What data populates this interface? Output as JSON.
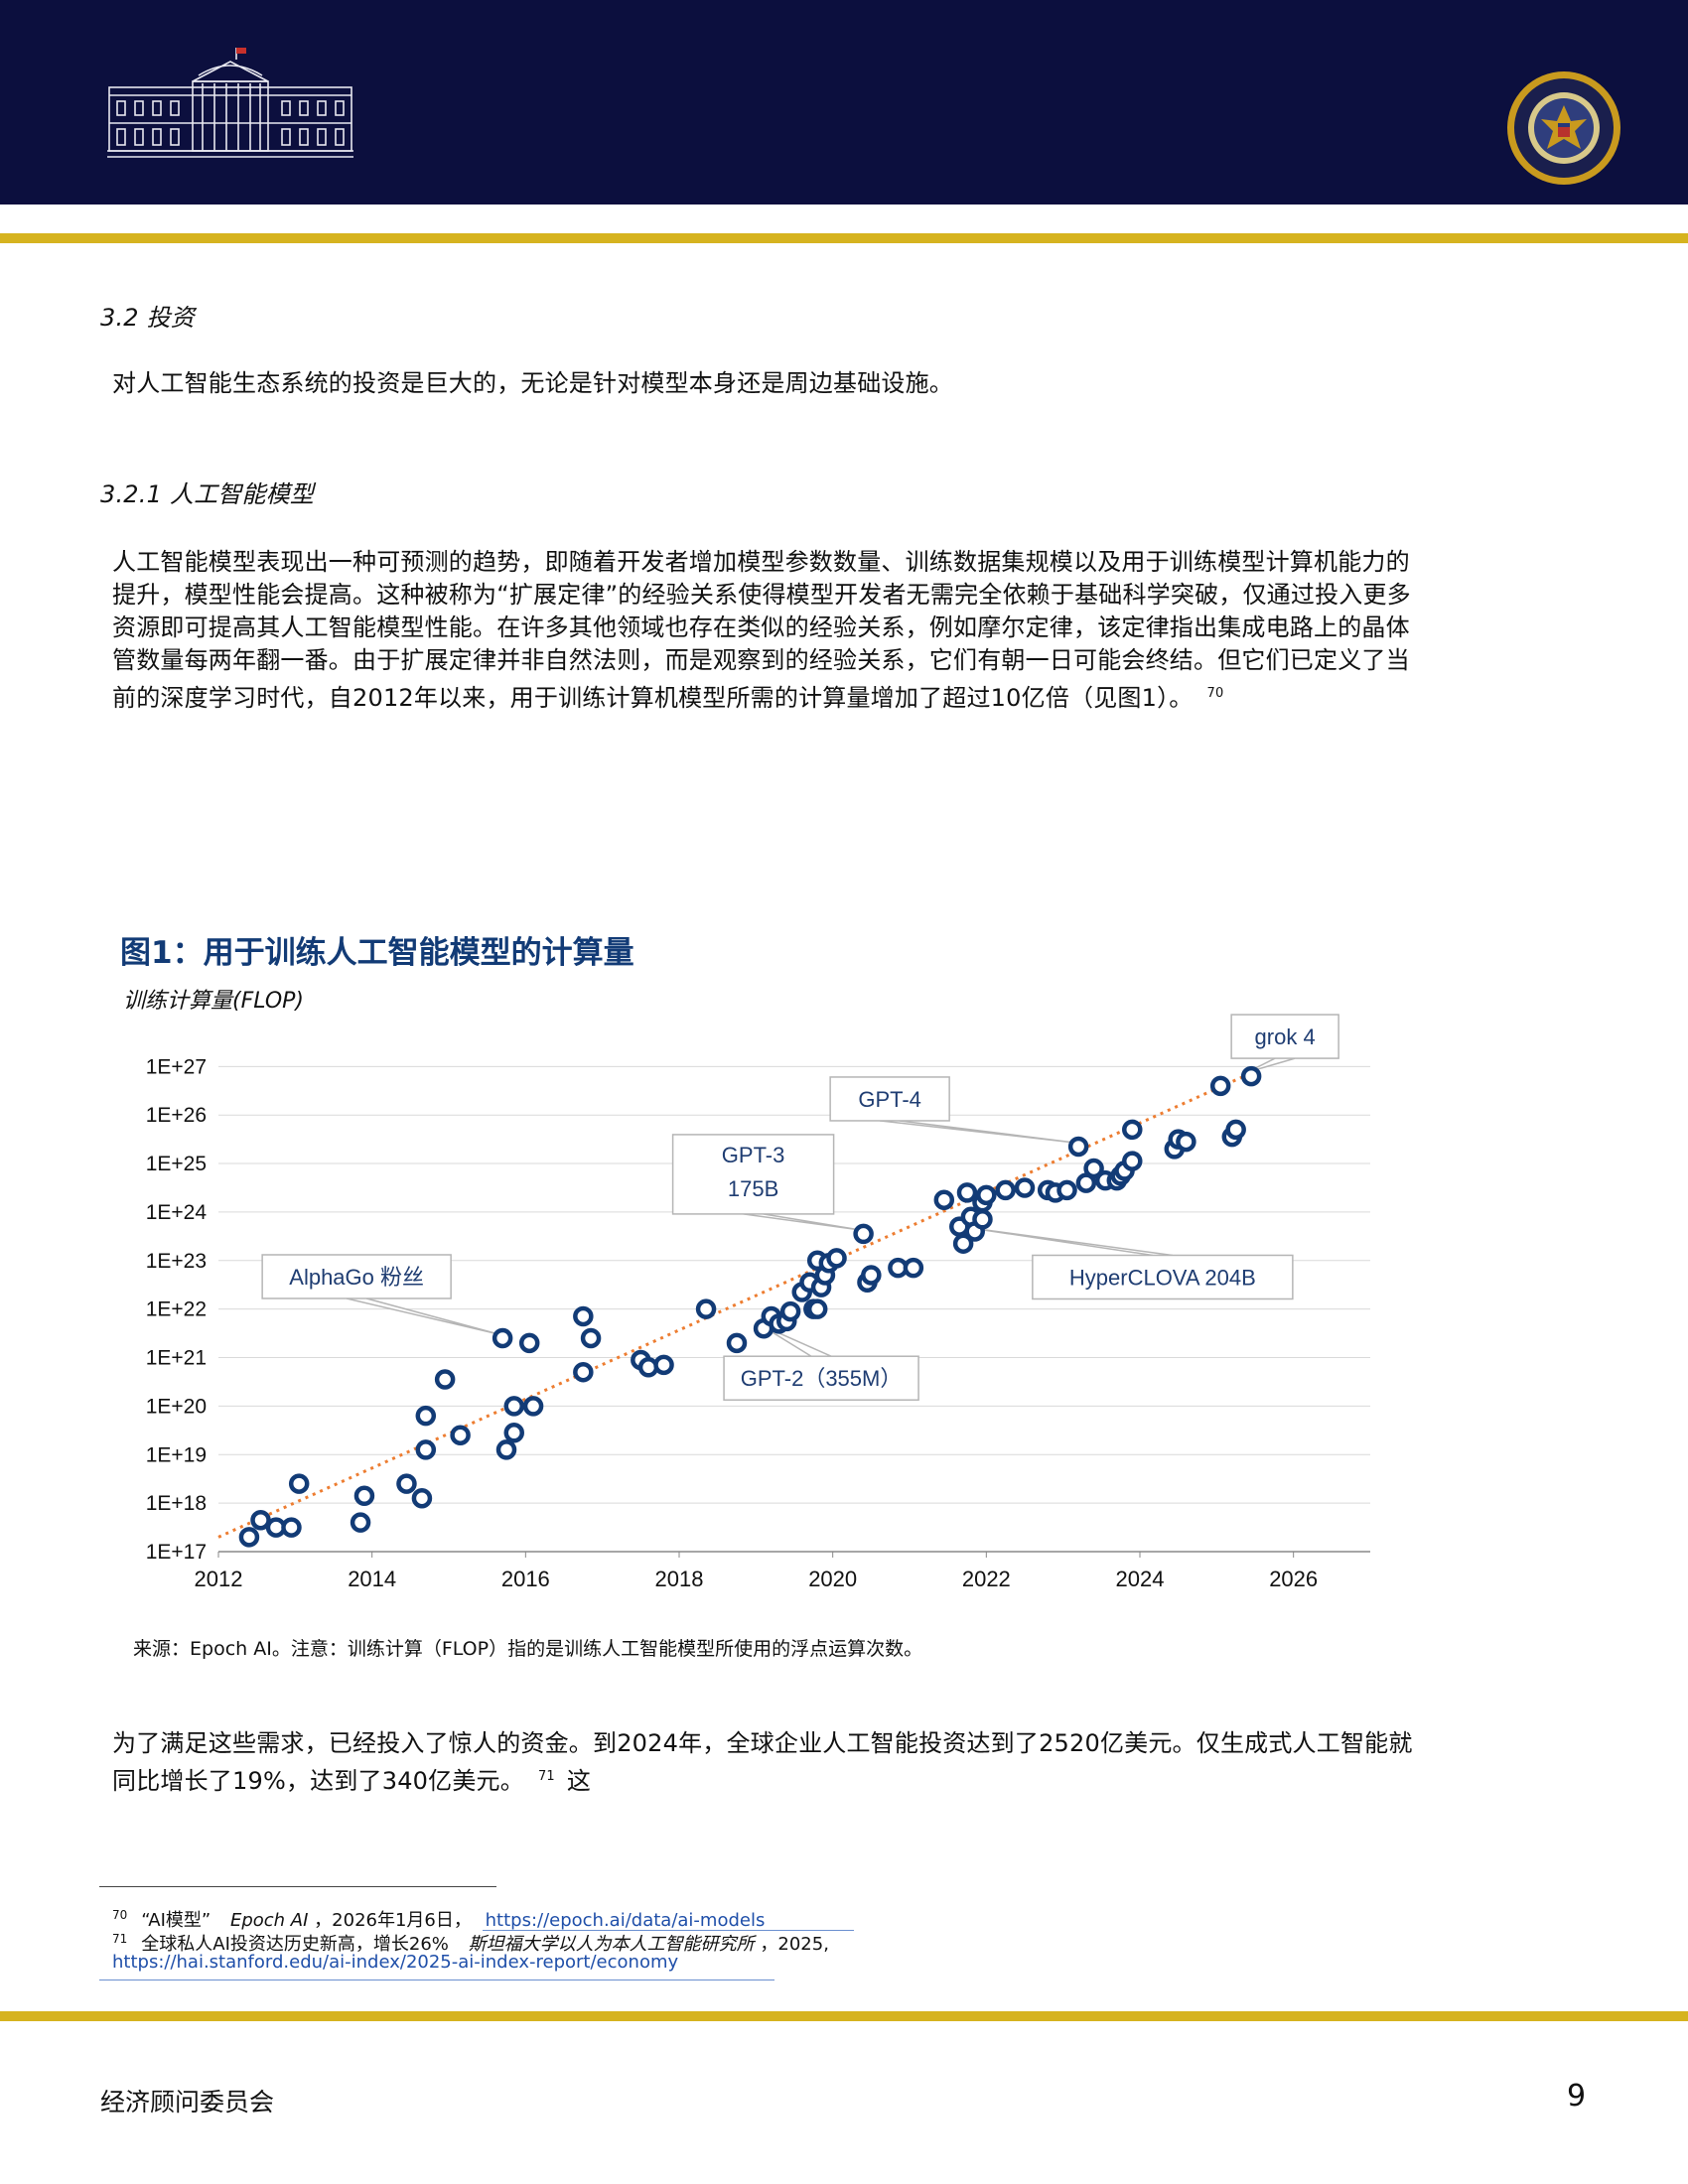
{
  "header": {
    "logo_left": "white-house-icon",
    "logo_right": "seal-icon",
    "seal_text": "EXECUTIVE OFFICE OF THE PRESIDENT OF THE UNITED STATES",
    "background": "#0c0f3e",
    "accent": "#d6b31f"
  },
  "section": {
    "heading_32": "3.2 投资",
    "intro": "对人工智能生态系统的投资是巨大的，无论是针对模型本身还是周边基础设施。",
    "heading_321": "3.2.1 人工智能模型",
    "para_lines": [
      "人工智能模型表现出一种可预测的趋势，即随着开发者增加模型参数数量、训练数据集规模以及用于训练模型计算机能力的",
      "提升，模型性能会提高。这种被称为“扩展定律”的经验关系使得模型开发者无需完全依赖于基础科学突破，仅通过投入更多",
      "资源即可提高其人工智能模型性能。在许多其他领域也存在类似的经验关系，例如摩尔定律，该定律指出集成电路上的晶体",
      "管数量每两年翻一番。由于扩展定律并非自然法则，而是观察到的经验关系，它们有朝一日可能会终结。但它们已定义了当",
      "前的深度学习时代，自2012年以来，用于训练计算机模型所需的计算量增加了超过10亿倍（见图1）。"
    ],
    "para_ref": "70",
    "after_lines": [
      "为了满足这些需求，已经投入了惊人的资金。到2024年，全球企业人工智能投资达到了2520亿美元。仅生成式人工智能就",
      "同比增长了19%，达到了340亿美元。"
    ],
    "after_ref": "71",
    "after_tail": "这"
  },
  "figure": {
    "title": "图1：用于训练人工智能模型的计算量",
    "source": "来源：Epoch AI。注意：训练计算（FLOP）指的是训练人工智能模型所使用的浮点运算次数。"
  },
  "chart_data": {
    "type": "scatter",
    "title": "图1：用于训练人工智能模型的计算量",
    "ylabel": "训练计算量(FLOP)",
    "xlabel": "",
    "y_scale": "log10",
    "xlim": [
      2012,
      2027
    ],
    "ylim": [
      17,
      27.6
    ],
    "x_ticks": [
      "2012",
      "2014",
      "2016",
      "2018",
      "2020",
      "2022",
      "2024",
      "2026"
    ],
    "y_ticks": [
      "1E+17",
      "1E+18",
      "1E+19",
      "1E+20",
      "1E+21",
      "1E+22",
      "1E+23",
      "1E+24",
      "1E+25",
      "1E+26",
      "1E+27"
    ],
    "grid": true,
    "marker_color": "#123b76",
    "trend_color": "#ed7d31",
    "trend": [
      [
        2012,
        17.3
      ],
      [
        2025.5,
        26.9
      ]
    ],
    "points": [
      [
        2012.4,
        17.3
      ],
      [
        2012.55,
        17.65
      ],
      [
        2012.75,
        17.5
      ],
      [
        2012.95,
        17.5
      ],
      [
        2013.05,
        18.4
      ],
      [
        2013.85,
        17.6
      ],
      [
        2013.9,
        18.15
      ],
      [
        2014.45,
        18.4
      ],
      [
        2014.65,
        18.1
      ],
      [
        2014.7,
        19.1
      ],
      [
        2014.7,
        19.8
      ],
      [
        2014.95,
        20.55
      ],
      [
        2015.15,
        19.4
      ],
      [
        2015.7,
        21.4
      ],
      [
        2015.75,
        19.1
      ],
      [
        2015.85,
        19.45
      ],
      [
        2015.85,
        20.0
      ],
      [
        2016.05,
        21.3
      ],
      [
        2016.1,
        20.0
      ],
      [
        2016.75,
        21.85
      ],
      [
        2016.75,
        20.7
      ],
      [
        2016.85,
        21.4
      ],
      [
        2017.5,
        20.95
      ],
      [
        2017.6,
        20.8
      ],
      [
        2017.8,
        20.85
      ],
      [
        2018.35,
        22.0
      ],
      [
        2018.75,
        21.3
      ],
      [
        2019.1,
        21.6
      ],
      [
        2019.2,
        21.85
      ],
      [
        2019.3,
        21.7
      ],
      [
        2019.4,
        21.75
      ],
      [
        2019.45,
        21.95
      ],
      [
        2019.6,
        22.35
      ],
      [
        2019.7,
        22.55
      ],
      [
        2019.75,
        22.0
      ],
      [
        2019.8,
        22.0
      ],
      [
        2019.8,
        23.0
      ],
      [
        2019.85,
        22.45
      ],
      [
        2019.9,
        22.7
      ],
      [
        2019.95,
        22.95
      ],
      [
        2020.05,
        23.05
      ],
      [
        2020.4,
        23.55
      ],
      [
        2020.45,
        22.55
      ],
      [
        2020.5,
        22.7
      ],
      [
        2020.85,
        22.85
      ],
      [
        2021.05,
        22.85
      ],
      [
        2021.45,
        24.25
      ],
      [
        2021.65,
        23.7
      ],
      [
        2021.7,
        23.35
      ],
      [
        2021.75,
        24.4
      ],
      [
        2021.8,
        23.9
      ],
      [
        2021.85,
        23.6
      ],
      [
        2021.95,
        24.2
      ],
      [
        2021.95,
        23.85
      ],
      [
        2022.0,
        24.35
      ],
      [
        2022.25,
        24.45
      ],
      [
        2022.5,
        24.5
      ],
      [
        2022.8,
        24.45
      ],
      [
        2022.9,
        24.4
      ],
      [
        2023.05,
        24.45
      ],
      [
        2023.2,
        25.35
      ],
      [
        2023.3,
        24.6
      ],
      [
        2023.4,
        24.9
      ],
      [
        2023.55,
        24.65
      ],
      [
        2023.7,
        24.65
      ],
      [
        2023.75,
        24.75
      ],
      [
        2023.8,
        24.85
      ],
      [
        2023.9,
        25.05
      ],
      [
        2023.9,
        25.7
      ],
      [
        2024.45,
        25.3
      ],
      [
        2024.5,
        25.5
      ],
      [
        2024.6,
        25.45
      ],
      [
        2025.05,
        26.6
      ],
      [
        2025.2,
        25.55
      ],
      [
        2025.25,
        25.7
      ],
      [
        2025.45,
        26.8
      ]
    ],
    "annotations": [
      {
        "label": "grok 4",
        "x": 2025.45,
        "y": 26.8
      },
      {
        "label": "GPT-4",
        "x": 2023.2,
        "y": 25.35
      },
      {
        "label": "GPT-3\n175B",
        "x": 2020.4,
        "y": 23.55
      },
      {
        "label": "HyperCLOVA 204B",
        "x": 2021.8,
        "y": 23.6
      },
      {
        "label": "AlphaGo 粉丝",
        "x": 2015.7,
        "y": 21.4
      },
      {
        "label": "GPT-2（355M）",
        "x": 2019.1,
        "y": 21.6
      }
    ]
  },
  "footnotes": [
    {
      "num": "70",
      "pre": "“AI模型”",
      "italic": "Epoch AI",
      "mid": "，2026年1月6日，",
      "link": "https://epoch.ai/data/ai-models"
    },
    {
      "num": "71",
      "pre": "全球私人AI投资达历史新高，增长26%",
      "italic": "斯坦福大学以人为本人工智能研究所",
      "mid": "，2025,",
      "link": "https://hai.stanford.edu/ai-index/2025-ai-index-report/economy"
    }
  ],
  "footer": {
    "org": "经济顾问委员会",
    "page": "9"
  }
}
